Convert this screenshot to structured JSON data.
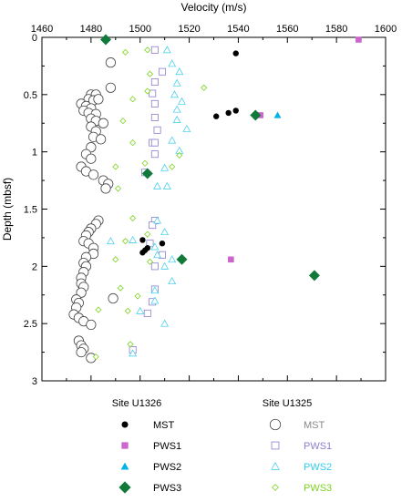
{
  "chart_data": {
    "type": "scatter",
    "title": "",
    "xlabel": "Velocity (m/s)",
    "ylabel": "Depth (mbsf)",
    "xlim": [
      1460,
      1600
    ],
    "ylim": [
      0,
      3
    ],
    "y_inverted": true,
    "x_axis_position": "top",
    "x_ticks": [
      "1460",
      "1480",
      "1500",
      "1520",
      "1540",
      "1560",
      "1580",
      "1600"
    ],
    "y_ticks": [
      "0",
      "0.5",
      "1",
      "1.5",
      "2",
      "2.5",
      "3"
    ],
    "grid": false,
    "legend_groups": [
      {
        "title": "Site U1326",
        "entries": [
          "MST",
          "PWS1",
          "PWS2",
          "PWS3"
        ]
      },
      {
        "title": "Site U1325",
        "entries": [
          "MST",
          "PWS1",
          "PWS2",
          "PWS3"
        ]
      }
    ],
    "series": [
      {
        "name": "MST",
        "site": "Site U1326",
        "marker": "filled-circle",
        "color": "#000000",
        "points": [
          [
            1539,
            0.14
          ],
          [
            1531,
            0.69
          ],
          [
            1536,
            0.66
          ],
          [
            1539,
            0.64
          ],
          [
            1501,
            1.77
          ],
          [
            1502,
            1.86
          ],
          [
            1503,
            1.84
          ],
          [
            1501,
            1.88
          ],
          [
            1509,
            1.8
          ]
        ]
      },
      {
        "name": "PWS1",
        "site": "Site U1326",
        "marker": "filled-square",
        "color": "#cc66cc",
        "points": [
          [
            1589,
            0.02
          ],
          [
            1549,
            0.68
          ],
          [
            1537,
            1.94
          ]
        ]
      },
      {
        "name": "PWS2",
        "site": "Site U1326",
        "marker": "filled-triangle",
        "color": "#00b4e6",
        "points": [
          [
            1556,
            0.68
          ]
        ]
      },
      {
        "name": "PWS3",
        "site": "Site U1326",
        "marker": "filled-diamond",
        "color": "#117a3a",
        "points": [
          [
            1486,
            0.02
          ],
          [
            1547,
            0.68
          ],
          [
            1503,
            1.19
          ],
          [
            1517,
            1.94
          ],
          [
            1571,
            2.08
          ]
        ]
      },
      {
        "name": "MST",
        "site": "Site U1325",
        "marker": "open-circle",
        "color": "#444444",
        "points": [
          [
            1488,
            0.22
          ],
          [
            1488,
            0.44
          ],
          [
            1480,
            0.5
          ],
          [
            1482,
            0.5
          ],
          [
            1479,
            0.54
          ],
          [
            1481,
            0.55
          ],
          [
            1483,
            0.54
          ],
          [
            1476,
            0.58
          ],
          [
            1478,
            0.6
          ],
          [
            1480,
            0.62
          ],
          [
            1477,
            0.64
          ],
          [
            1479,
            0.66
          ],
          [
            1482,
            0.67
          ],
          [
            1480,
            0.71
          ],
          [
            1482,
            0.73
          ],
          [
            1485,
            0.75
          ],
          [
            1480,
            0.78
          ],
          [
            1482,
            0.82
          ],
          [
            1481,
            0.87
          ],
          [
            1484,
            0.89
          ],
          [
            1480,
            0.96
          ],
          [
            1478,
            1.02
          ],
          [
            1480,
            1.06
          ],
          [
            1476,
            1.13
          ],
          [
            1478,
            1.17
          ],
          [
            1481,
            1.2
          ],
          [
            1485,
            1.25
          ],
          [
            1487,
            1.28
          ],
          [
            1486,
            1.32
          ],
          [
            1483,
            1.6
          ],
          [
            1482,
            1.63
          ],
          [
            1480,
            1.67
          ],
          [
            1479,
            1.7
          ],
          [
            1478,
            1.73
          ],
          [
            1477,
            1.78
          ],
          [
            1479,
            1.8
          ],
          [
            1481,
            1.84
          ],
          [
            1481,
            1.89
          ],
          [
            1478,
            1.92
          ],
          [
            1477,
            1.97
          ],
          [
            1478,
            2.0
          ],
          [
            1477,
            2.05
          ],
          [
            1476,
            2.1
          ],
          [
            1476,
            2.15
          ],
          [
            1477,
            2.18
          ],
          [
            1476,
            2.23
          ],
          [
            1474,
            2.29
          ],
          [
            1475,
            2.32
          ],
          [
            1474,
            2.36
          ],
          [
            1473,
            2.42
          ],
          [
            1475,
            2.45
          ],
          [
            1477,
            2.48
          ],
          [
            1480,
            2.51
          ],
          [
            1475,
            2.65
          ],
          [
            1476,
            2.69
          ],
          [
            1477,
            2.72
          ],
          [
            1476,
            2.75
          ],
          [
            1489,
            2.28
          ],
          [
            1480,
            2.8
          ]
        ]
      },
      {
        "name": "PWS1",
        "site": "Site U1325",
        "marker": "open-square",
        "color": "#8a7fd0",
        "points": [
          [
            1506,
            0.11
          ],
          [
            1509,
            0.3
          ],
          [
            1506,
            0.39
          ],
          [
            1505,
            0.49
          ],
          [
            1506,
            0.58
          ],
          [
            1506,
            0.7
          ],
          [
            1507,
            0.81
          ],
          [
            1505,
            0.92
          ],
          [
            1506,
            0.92
          ],
          [
            1506,
            1.02
          ],
          [
            1502,
            1.18
          ],
          [
            1506,
            1.6
          ],
          [
            1505,
            1.64
          ],
          [
            1504,
            1.8
          ],
          [
            1509,
            1.9
          ],
          [
            1506,
            2.0
          ],
          [
            1506,
            2.2
          ],
          [
            1505,
            2.31
          ],
          [
            1503,
            2.41
          ],
          [
            1497,
            2.73
          ]
        ]
      },
      {
        "name": "PWS2",
        "site": "Site U1325",
        "marker": "open-triangle",
        "color": "#33ccee",
        "points": [
          [
            1511,
            0.11
          ],
          [
            1513,
            0.23
          ],
          [
            1516,
            0.3
          ],
          [
            1515,
            0.4
          ],
          [
            1514,
            0.5
          ],
          [
            1517,
            0.56
          ],
          [
            1515,
            0.63
          ],
          [
            1515,
            0.72
          ],
          [
            1519,
            0.8
          ],
          [
            1513,
            0.9
          ],
          [
            1516,
            0.99
          ],
          [
            1510,
            1.14
          ],
          [
            1507,
            1.3
          ],
          [
            1511,
            1.3
          ],
          [
            1507,
            1.6
          ],
          [
            1510,
            1.7
          ],
          [
            1497,
            1.77
          ],
          [
            1488,
            1.78
          ],
          [
            1506,
            1.83
          ],
          [
            1507,
            1.9
          ],
          [
            1513,
            1.94
          ],
          [
            1510,
            2.0
          ],
          [
            1513,
            2.13
          ],
          [
            1506,
            2.21
          ],
          [
            1506,
            2.3
          ],
          [
            1500,
            2.39
          ],
          [
            1510,
            2.5
          ],
          [
            1497,
            2.76
          ]
        ]
      },
      {
        "name": "PWS3",
        "site": "Site U1325",
        "marker": "open-diamond",
        "color": "#7ed321",
        "points": [
          [
            1494,
            0.13
          ],
          [
            1503,
            0.11
          ],
          [
            1504,
            0.32
          ],
          [
            1497,
            0.54
          ],
          [
            1526,
            0.44
          ],
          [
            1503,
            0.47
          ],
          [
            1493,
            0.73
          ],
          [
            1497,
            0.92
          ],
          [
            1516,
            1.03
          ],
          [
            1502,
            1.1
          ],
          [
            1513,
            1.13
          ],
          [
            1490,
            1.13
          ],
          [
            1491,
            1.32
          ],
          [
            1497,
            1.58
          ],
          [
            1503,
            1.72
          ],
          [
            1494,
            1.78
          ],
          [
            1490,
            1.94
          ],
          [
            1504,
            1.96
          ],
          [
            1492,
            2.19
          ],
          [
            1499,
            2.26
          ],
          [
            1495,
            2.39
          ],
          [
            1483,
            2.38
          ],
          [
            1496,
            2.68
          ],
          [
            1482,
            2.79
          ]
        ]
      }
    ]
  }
}
